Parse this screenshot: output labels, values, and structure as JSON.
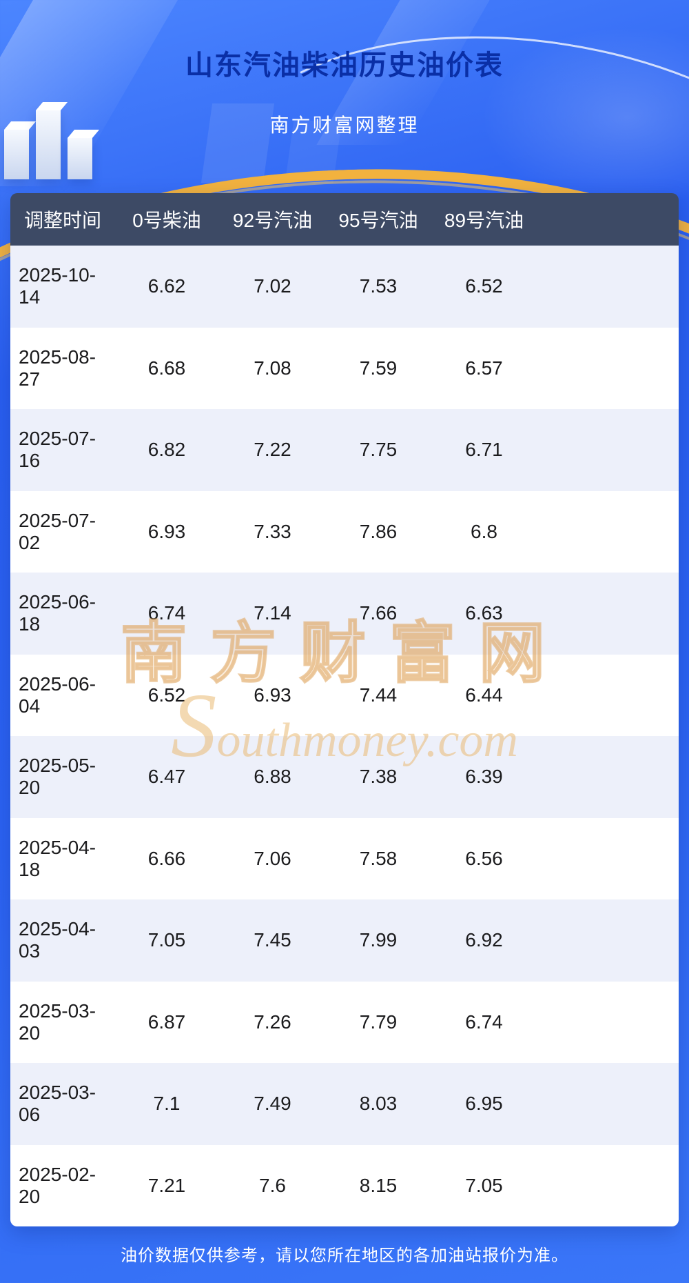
{
  "page": {
    "title": "山东汽油柴油历史油价表",
    "subtitle": "南方财富网整理",
    "footer_note": "油价数据仅供参考，请以您所在地区的各加油站报价为准。",
    "watermark_cn": "南方财富网",
    "watermark_en": "Southmoney.com"
  },
  "colors": {
    "accent_gold": "#f2b23e",
    "table_header_bg": "#3d4a65",
    "row_alt_bg": "#edf0fa",
    "title_blue": "#0a2fa6",
    "background_blue": "#2c63f2"
  },
  "chart_data": {
    "type": "table",
    "title": "山东汽油柴油历史油价表",
    "columns": [
      "调整时间",
      "0号柴油",
      "92号汽油",
      "95号汽油",
      "89号汽油"
    ],
    "rows": [
      [
        "2025-10-14",
        "6.62",
        "7.02",
        "7.53",
        "6.52"
      ],
      [
        "2025-08-27",
        "6.68",
        "7.08",
        "7.59",
        "6.57"
      ],
      [
        "2025-07-16",
        "6.82",
        "7.22",
        "7.75",
        "6.71"
      ],
      [
        "2025-07-02",
        "6.93",
        "7.33",
        "7.86",
        "6.8"
      ],
      [
        "2025-06-18",
        "6.74",
        "7.14",
        "7.66",
        "6.63"
      ],
      [
        "2025-06-04",
        "6.52",
        "6.93",
        "7.44",
        "6.44"
      ],
      [
        "2025-05-20",
        "6.47",
        "6.88",
        "7.38",
        "6.39"
      ],
      [
        "2025-04-18",
        "6.66",
        "7.06",
        "7.58",
        "6.56"
      ],
      [
        "2025-04-03",
        "7.05",
        "7.45",
        "7.99",
        "6.92"
      ],
      [
        "2025-03-20",
        "6.87",
        "7.26",
        "7.79",
        "6.74"
      ],
      [
        "2025-03-06",
        "7.1",
        "7.49",
        "8.03",
        "6.95"
      ],
      [
        "2025-02-20",
        "7.21",
        "7.6",
        "8.15",
        "7.05"
      ]
    ]
  }
}
